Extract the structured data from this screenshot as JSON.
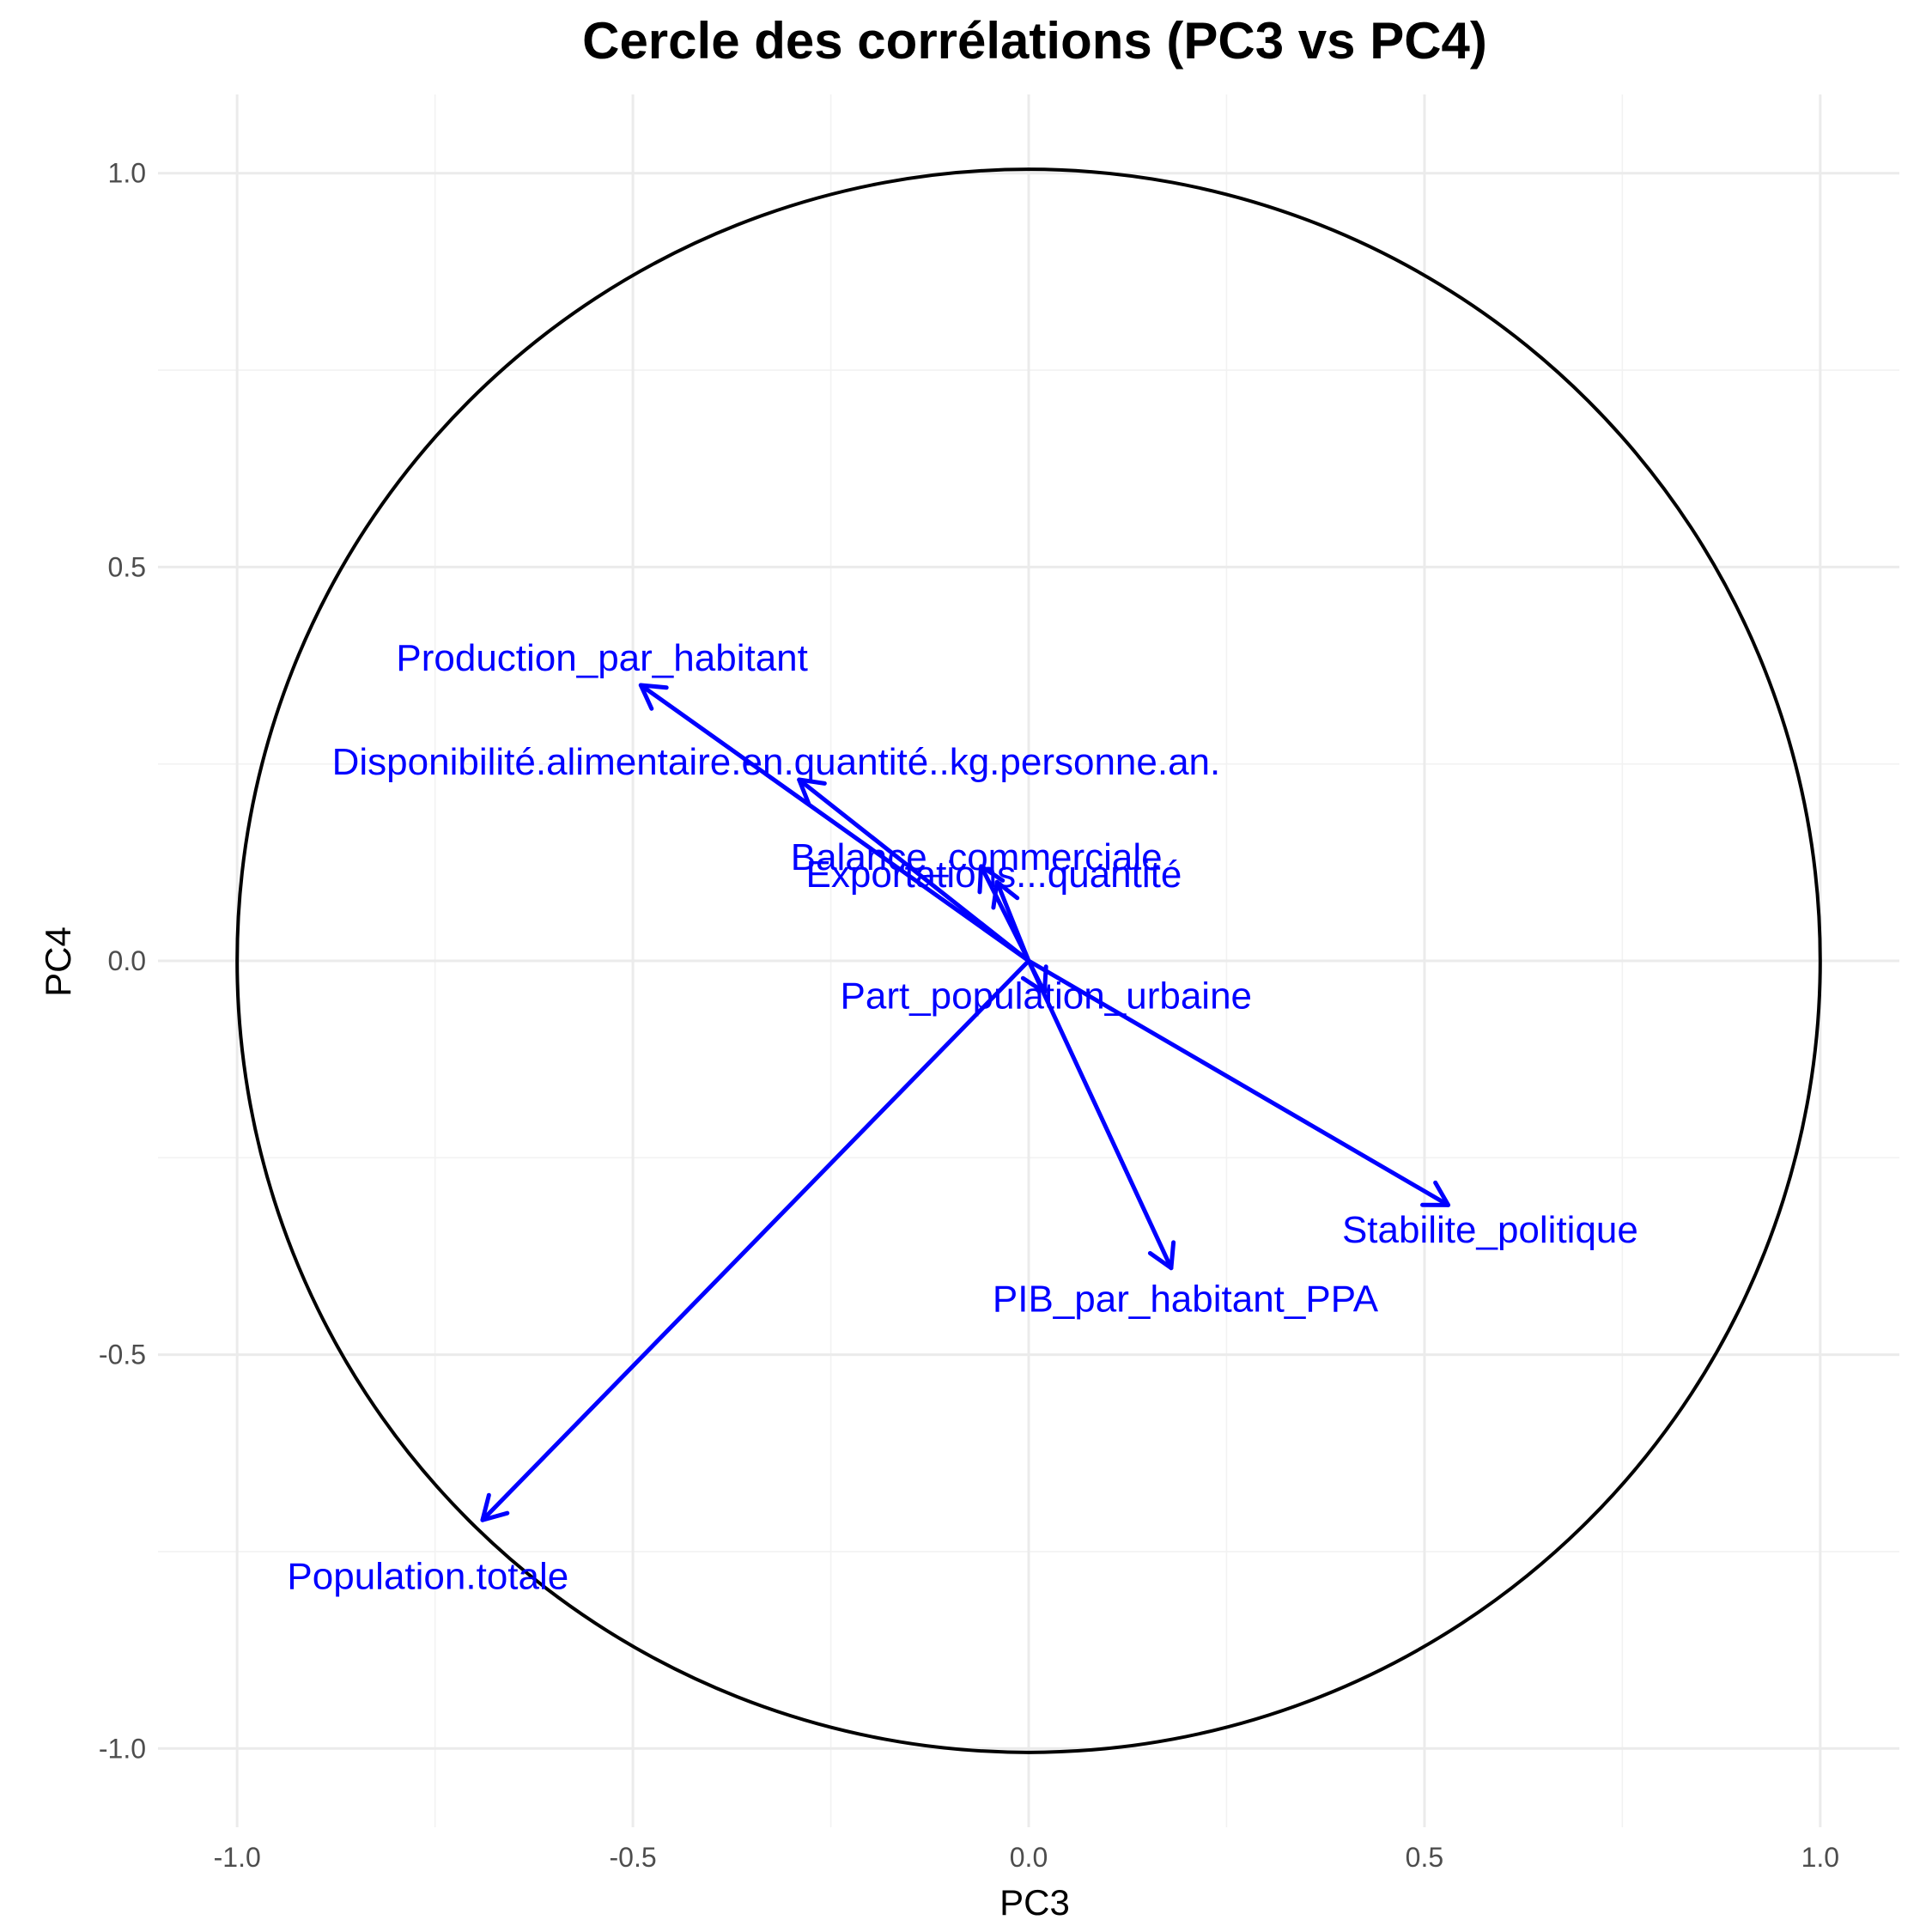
{
  "chart_data": {
    "type": "scatter",
    "title": "Cercle des corrélations (PC3 vs PC4)",
    "xlabel": "PC3",
    "ylabel": "PC4",
    "xlim": [
      -1.1,
      1.1
    ],
    "ylim": [
      -1.1,
      1.1
    ],
    "x_ticks": [
      -1.0,
      -0.5,
      0.0,
      0.5,
      1.0
    ],
    "y_ticks": [
      -1.0,
      -0.5,
      0.0,
      0.5,
      1.0
    ],
    "x_tick_labels": [
      "-1.0",
      "-0.5",
      "0.0",
      "0.5",
      "1.0"
    ],
    "y_tick_labels": [
      "-1.0",
      "-0.5",
      "0.0",
      "0.5",
      "1.0"
    ],
    "grid": true,
    "unit_circle": true,
    "arrow_color": "#0000ff",
    "circle_color": "#000000",
    "vectors": [
      {
        "name": "Production_par_habitant",
        "x": -0.49,
        "y": 0.35
      },
      {
        "name": "Disponibilité.alimentaire.en.quantité..kg.personne.an.",
        "x": -0.29,
        "y": 0.23
      },
      {
        "name": "Balance_commerciale",
        "x": -0.06,
        "y": 0.12
      },
      {
        "name": "Exportations...quantité",
        "x": -0.04,
        "y": 0.1
      },
      {
        "name": "Part_population_urbaine",
        "x": 0.02,
        "y": -0.04
      },
      {
        "name": "Stabilite_politique",
        "x": 0.53,
        "y": -0.31
      },
      {
        "name": "PIB_par_habitant_PPA",
        "x": 0.18,
        "y": -0.39
      },
      {
        "name": "Population.totale",
        "x": -0.69,
        "y": -0.71
      }
    ]
  }
}
